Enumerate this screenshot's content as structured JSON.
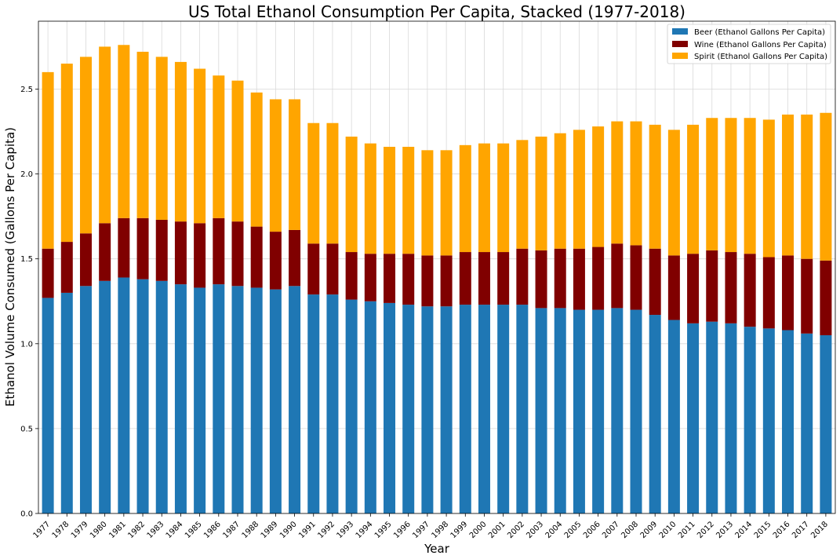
{
  "chart_data": {
    "type": "bar",
    "stacked": true,
    "title": "US Total Ethanol Consumption Per Capita, Stacked (1977-2018)",
    "xlabel": "Year",
    "ylabel": "Ethanol Volume Consumed (Gallons Per Capita)",
    "ylim": [
      0,
      2.9
    ],
    "yticks": [
      "0.0",
      "0.5",
      "1.0",
      "1.5",
      "2.0",
      "2.5"
    ],
    "grid": true,
    "legend_position": "top-right",
    "categories": [
      "1977",
      "1978",
      "1979",
      "1980",
      "1981",
      "1982",
      "1983",
      "1984",
      "1985",
      "1986",
      "1987",
      "1988",
      "1989",
      "1990",
      "1991",
      "1992",
      "1993",
      "1994",
      "1995",
      "1996",
      "1997",
      "1998",
      "1999",
      "2000",
      "2001",
      "2002",
      "2003",
      "2004",
      "2005",
      "2006",
      "2007",
      "2008",
      "2009",
      "2010",
      "2011",
      "2012",
      "2013",
      "2014",
      "2015",
      "2016",
      "2017",
      "2018"
    ],
    "series": [
      {
        "name": "Beer (Ethanol Gallons Per Capita)",
        "color": "#1f77b4",
        "values": [
          1.27,
          1.3,
          1.34,
          1.37,
          1.39,
          1.38,
          1.37,
          1.35,
          1.33,
          1.35,
          1.34,
          1.33,
          1.32,
          1.34,
          1.29,
          1.29,
          1.26,
          1.25,
          1.24,
          1.23,
          1.22,
          1.22,
          1.23,
          1.23,
          1.23,
          1.23,
          1.21,
          1.21,
          1.2,
          1.2,
          1.21,
          1.2,
          1.17,
          1.14,
          1.12,
          1.13,
          1.12,
          1.1,
          1.09,
          1.08,
          1.06,
          1.05
        ]
      },
      {
        "name": "Wine (Ethanol Gallons Per Capita)",
        "color": "#800000",
        "values": [
          0.29,
          0.3,
          0.31,
          0.34,
          0.35,
          0.36,
          0.36,
          0.37,
          0.38,
          0.39,
          0.38,
          0.36,
          0.34,
          0.33,
          0.3,
          0.3,
          0.28,
          0.28,
          0.29,
          0.3,
          0.3,
          0.3,
          0.31,
          0.31,
          0.31,
          0.33,
          0.34,
          0.35,
          0.36,
          0.37,
          0.38,
          0.38,
          0.39,
          0.38,
          0.41,
          0.42,
          0.42,
          0.43,
          0.42,
          0.44,
          0.44,
          0.44
        ]
      },
      {
        "name": "Spirit (Ethanol Gallons Per Capita)",
        "color": "#ffa500",
        "values": [
          1.04,
          1.05,
          1.04,
          1.04,
          1.02,
          0.98,
          0.96,
          0.94,
          0.91,
          0.84,
          0.83,
          0.79,
          0.78,
          0.77,
          0.71,
          0.71,
          0.68,
          0.65,
          0.63,
          0.63,
          0.62,
          0.62,
          0.63,
          0.64,
          0.64,
          0.64,
          0.67,
          0.68,
          0.7,
          0.71,
          0.72,
          0.73,
          0.73,
          0.74,
          0.76,
          0.78,
          0.79,
          0.8,
          0.81,
          0.83,
          0.85,
          0.87
        ]
      }
    ]
  }
}
